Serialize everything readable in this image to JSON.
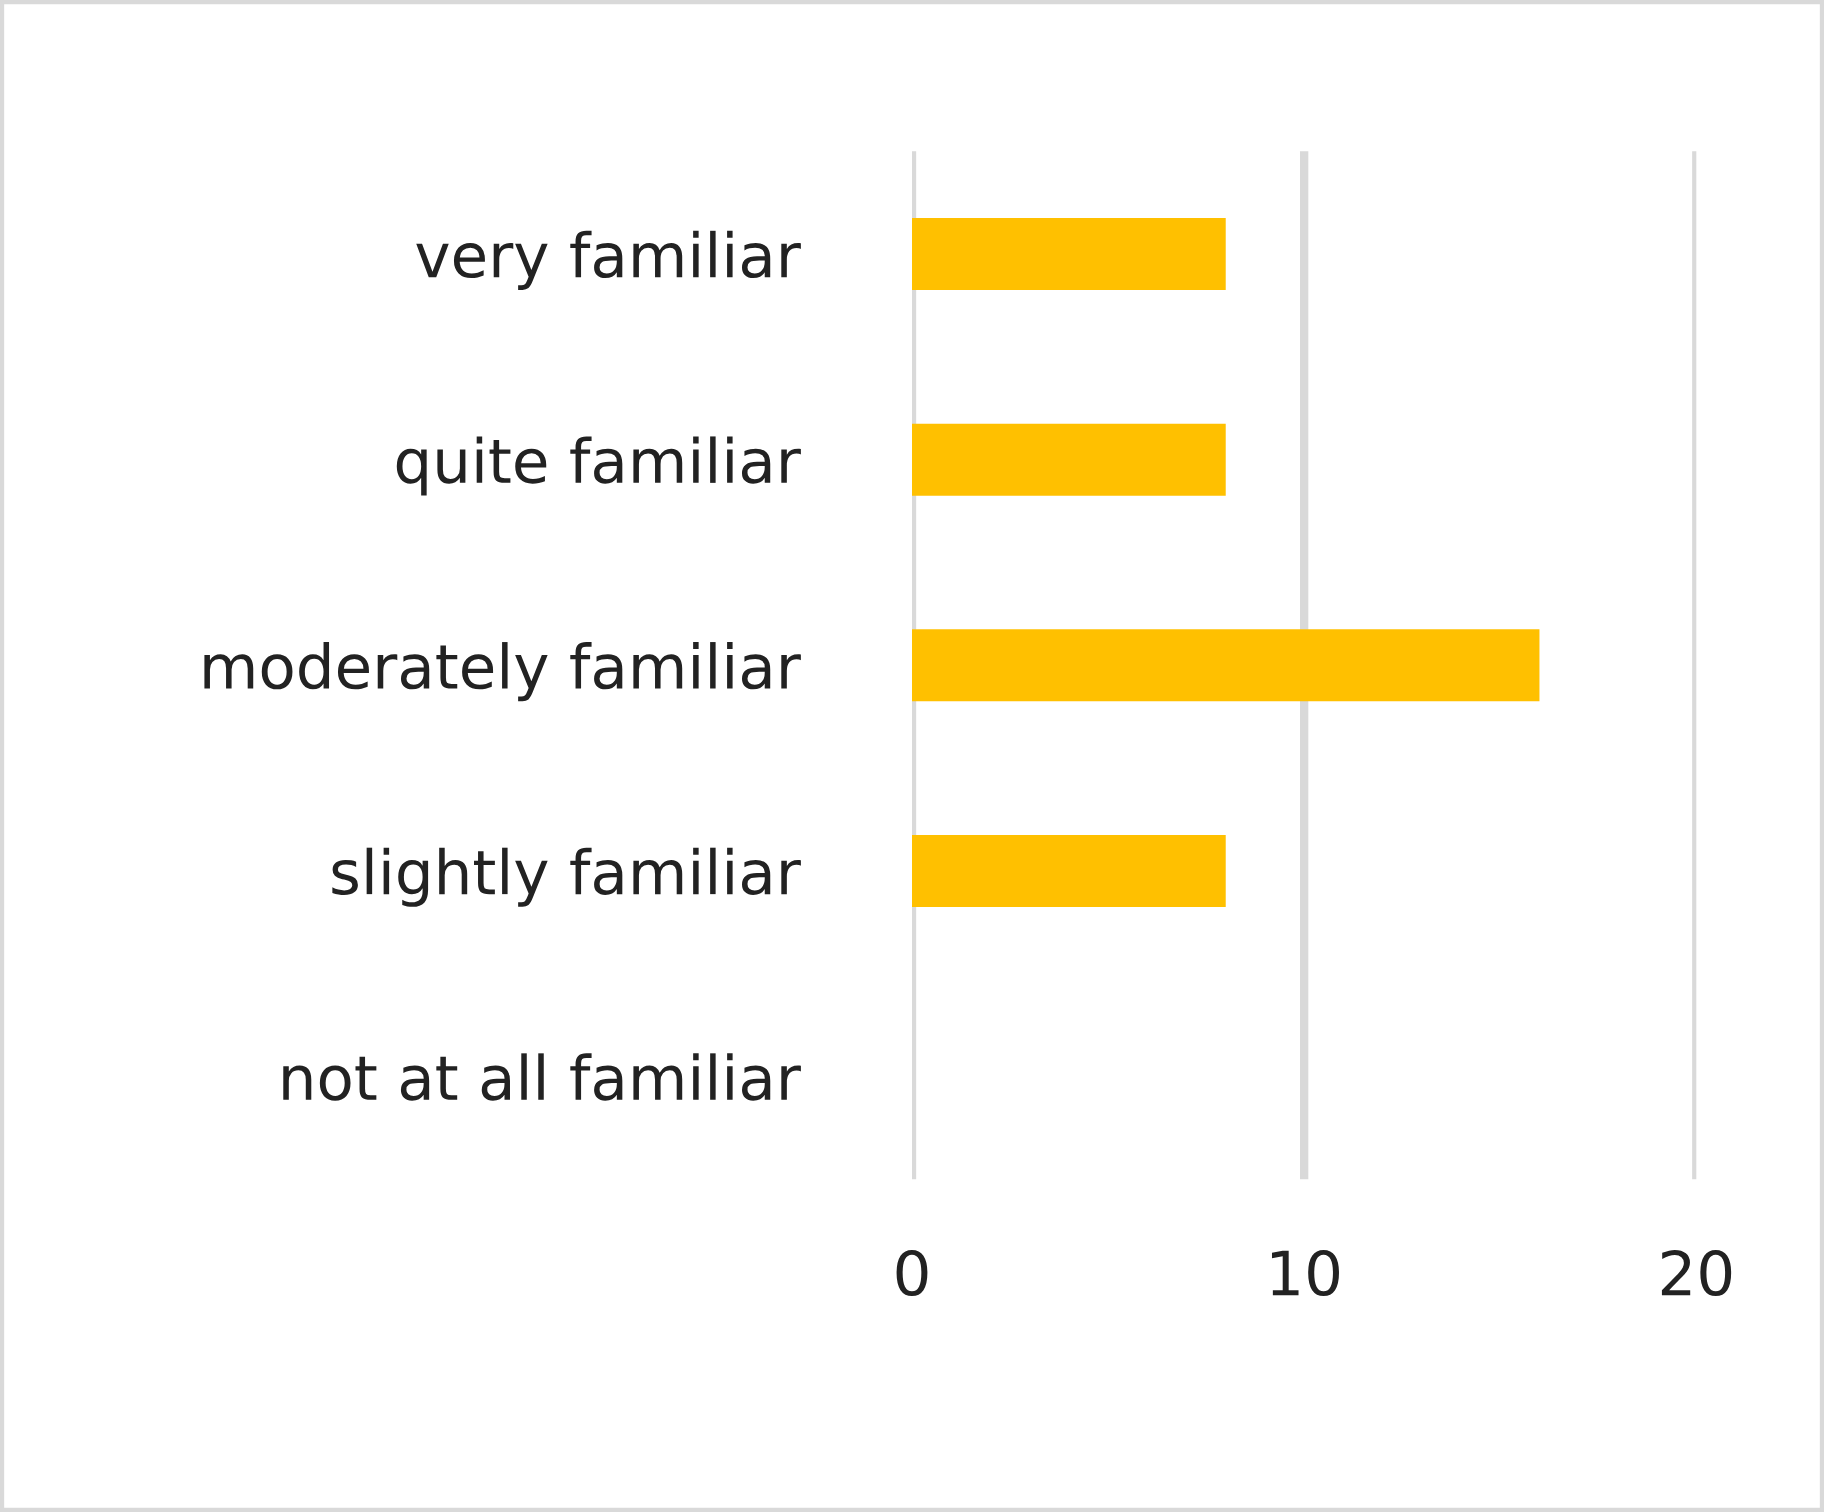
{
  "chart_data": {
    "type": "bar",
    "orientation": "horizontal",
    "categories": [
      "very familiar",
      "quite familiar",
      "moderately familiar",
      "slightly familiar",
      "not at all familiar"
    ],
    "values": [
      8,
      8,
      16,
      8,
      0
    ],
    "color": "#ffc000",
    "xlim": [
      0,
      20
    ],
    "xticks": [
      0,
      10,
      20
    ],
    "grid": "x"
  }
}
